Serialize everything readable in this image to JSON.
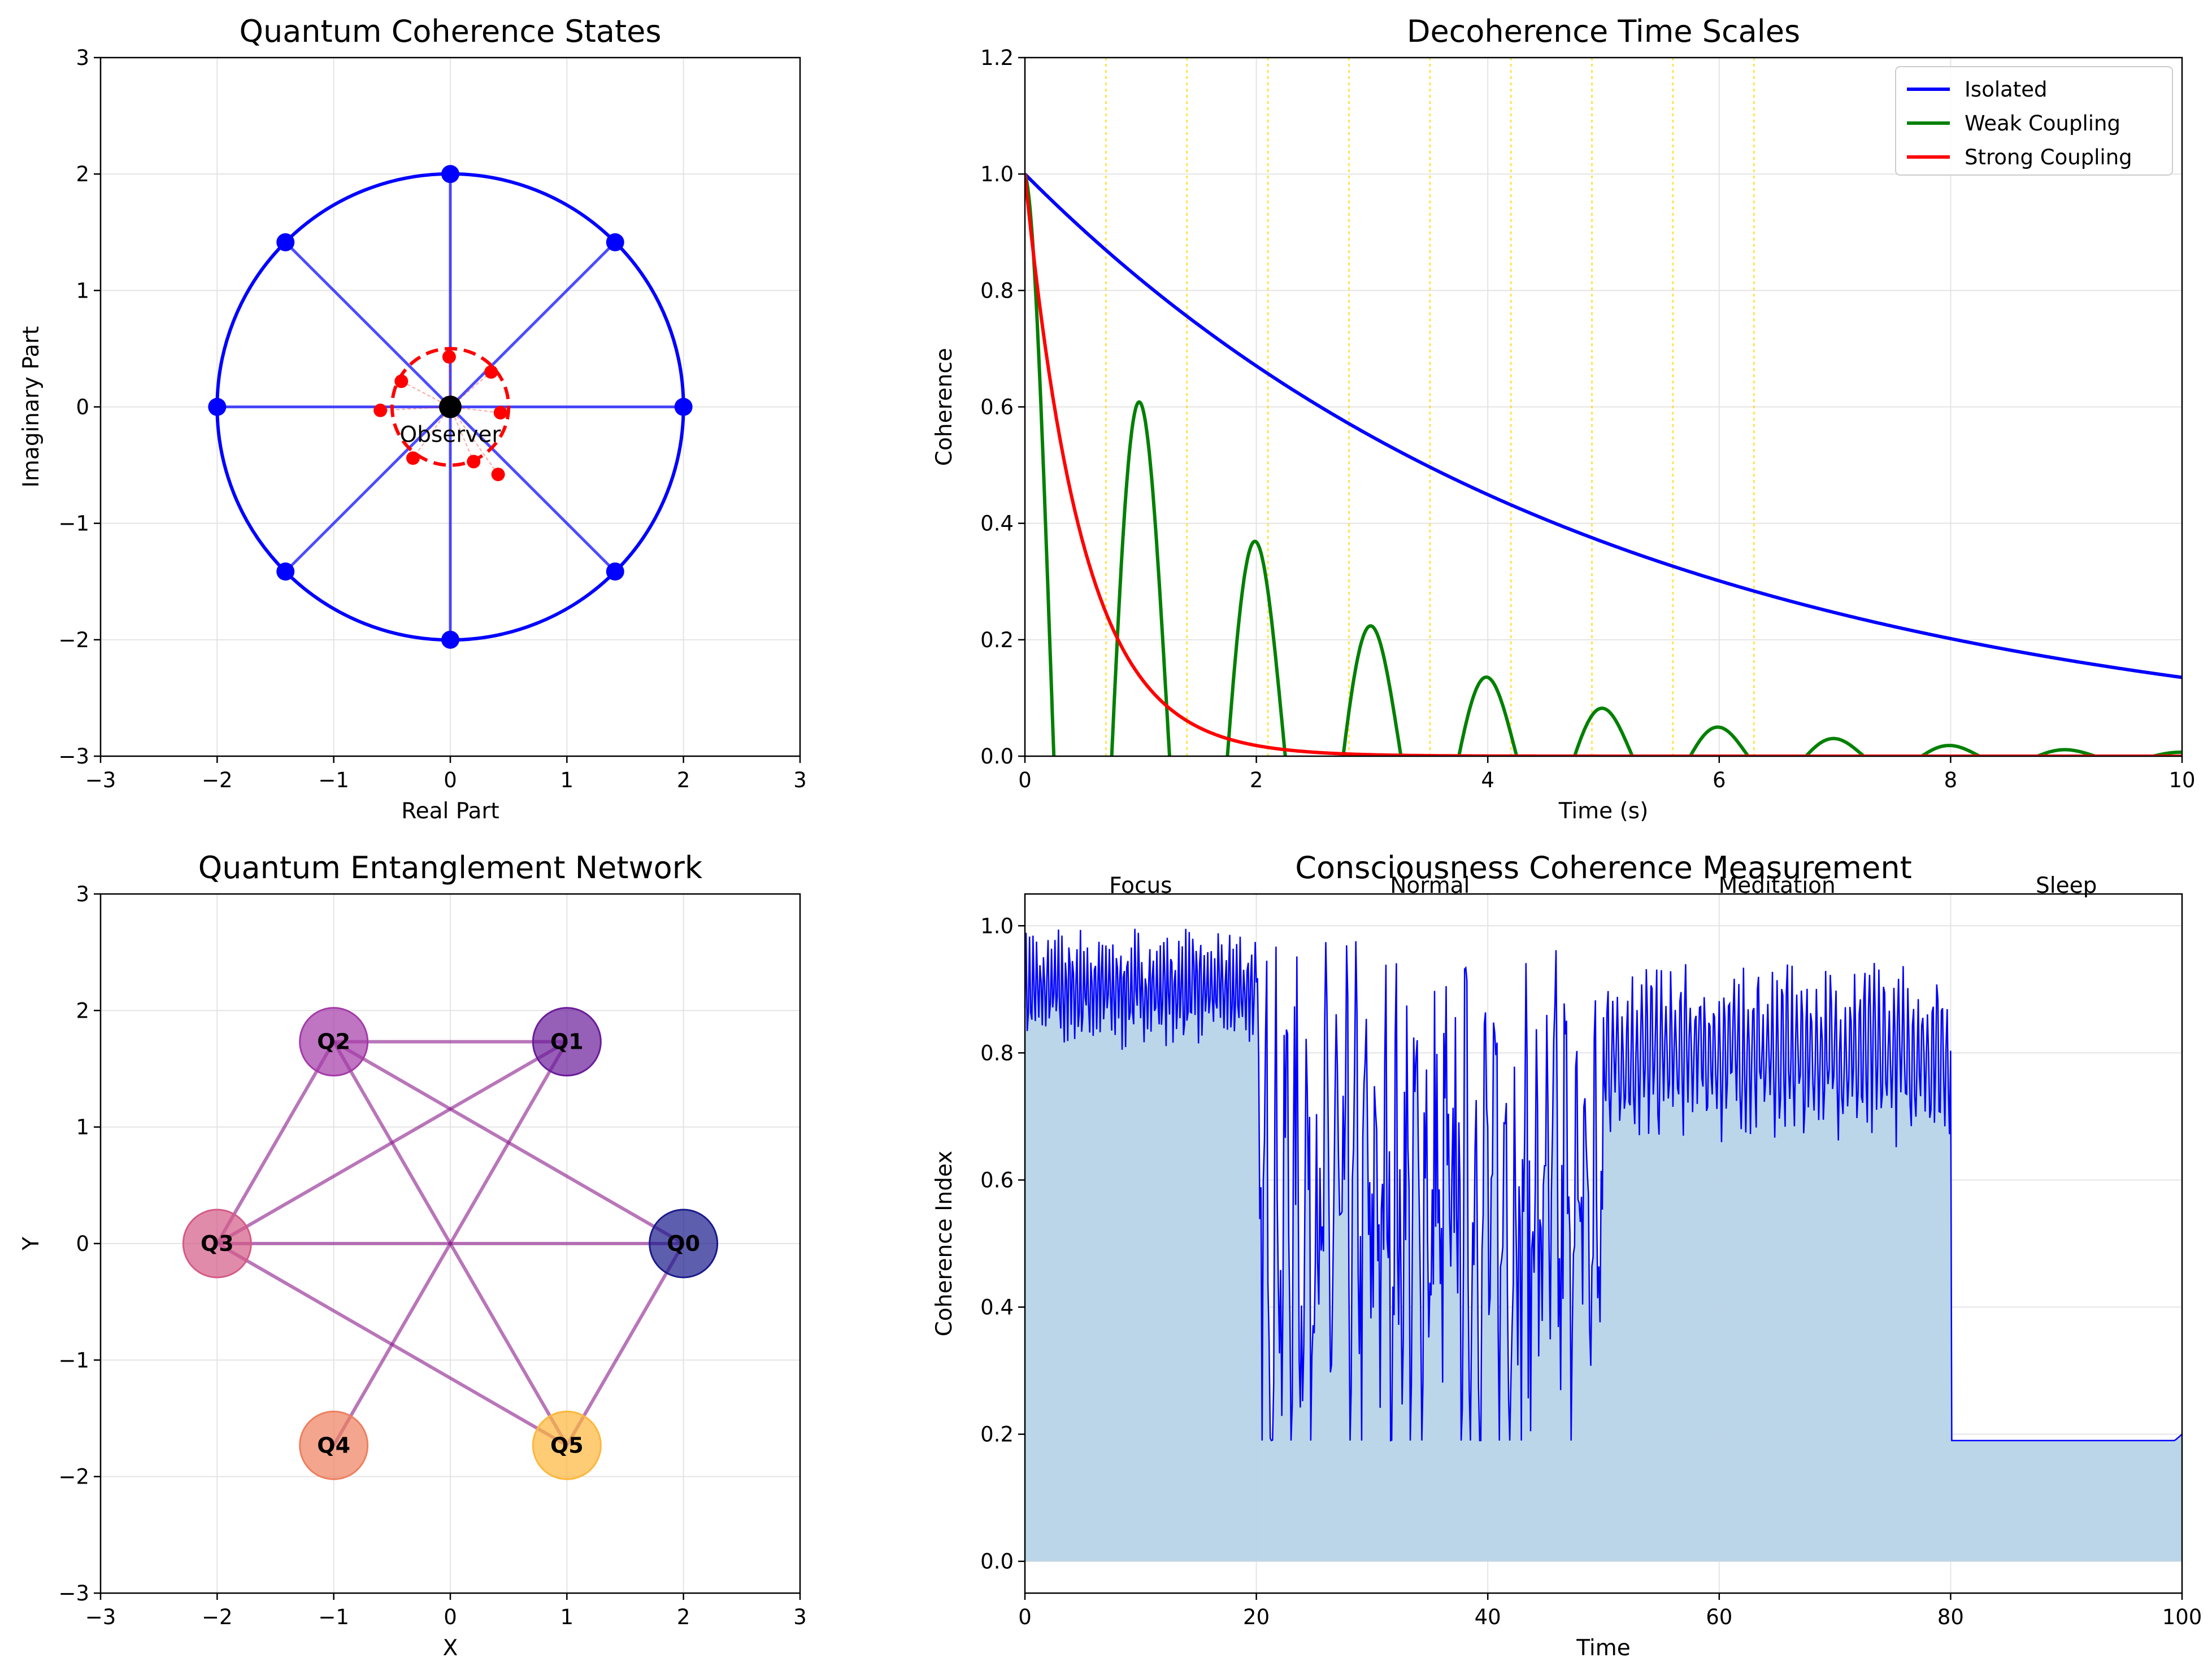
{
  "charts": {
    "coherence_states": {
      "title": "Quantum Coherence States",
      "xlabel": "Real Part",
      "ylabel": "Imaginary Part",
      "xlim": [
        -3,
        3
      ],
      "ylim": [
        -3,
        3
      ],
      "xticks": [
        -3,
        -2,
        -1,
        0,
        1,
        2,
        3
      ],
      "yticks": [
        -3,
        -2,
        -1,
        0,
        1,
        2,
        3
      ],
      "observer_label": "Observer"
    },
    "decoherence": {
      "title": "Decoherence Time Scales",
      "xlabel": "Time (s)",
      "ylabel": "Coherence",
      "xlim": [
        0,
        10
      ],
      "ylim": [
        0,
        1.2
      ],
      "xticks": [
        0,
        2,
        4,
        6,
        8,
        10
      ],
      "yticks": [
        0.0,
        0.2,
        0.4,
        0.6,
        0.8,
        1.0,
        1.2
      ],
      "legend": [
        "Isolated",
        "Weak Coupling",
        "Strong Coupling"
      ]
    },
    "entanglement": {
      "title": "Quantum Entanglement Network",
      "xlabel": "X",
      "ylabel": "Y",
      "xlim": [
        -3,
        3
      ],
      "ylim": [
        -3,
        3
      ],
      "xticks": [
        -3,
        -2,
        -1,
        0,
        1,
        2,
        3
      ],
      "yticks": [
        -3,
        -2,
        -1,
        0,
        1,
        2,
        3
      ],
      "node_labels": [
        "Q0",
        "Q1",
        "Q2",
        "Q3",
        "Q4",
        "Q5"
      ]
    },
    "consciousness": {
      "title": "Consciousness Coherence Measurement",
      "xlabel": "Time",
      "ylabel": "Coherence Index",
      "xlim": [
        0,
        100
      ],
      "ylim": [
        -0.05,
        1.05
      ],
      "xticks": [
        0,
        20,
        40,
        60,
        80,
        100
      ],
      "yticks": [
        0.0,
        0.2,
        0.4,
        0.6,
        0.8,
        1.0
      ],
      "phases": [
        "Focus",
        "Normal",
        "Meditation",
        "Sleep"
      ]
    }
  },
  "chart_data": [
    {
      "type": "scatter",
      "title": "Quantum Coherence States",
      "xlabel": "Real Part",
      "ylabel": "Imaginary Part",
      "xlim": [
        -3,
        3
      ],
      "ylim": [
        -3,
        3
      ],
      "grid": true,
      "circle_radius": 2,
      "outer_points": [
        [
          2,
          0
        ],
        [
          1.414,
          1.414
        ],
        [
          0,
          2
        ],
        [
          -1.414,
          1.414
        ],
        [
          -2,
          0
        ],
        [
          -1.414,
          -1.414
        ],
        [
          0,
          -2
        ],
        [
          1.414,
          -1.414
        ]
      ],
      "center_point": [
        0,
        0
      ],
      "inner_circle_radius": 0.5,
      "inner_points": [
        [
          0.35,
          0.3
        ],
        [
          -0.01,
          0.43
        ],
        [
          -0.42,
          0.22
        ],
        [
          -0.6,
          -0.03
        ],
        [
          0.43,
          -0.05
        ],
        [
          -0.32,
          -0.44
        ],
        [
          0.2,
          -0.47
        ],
        [
          0.41,
          -0.58
        ]
      ],
      "colors": {
        "outer": "#0000ff",
        "inner": "#ff0000",
        "center": "#000000"
      }
    },
    {
      "type": "line",
      "title": "Decoherence Time Scales",
      "xlabel": "Time (s)",
      "ylabel": "Coherence",
      "xlim": [
        0,
        10
      ],
      "ylim": [
        0,
        1.2
      ],
      "grid": true,
      "legend_position": "top-right",
      "series": [
        {
          "name": "Isolated",
          "color": "#0000ff",
          "x": [
            0,
            1,
            2,
            3,
            4,
            5,
            6,
            7,
            8,
            9,
            10
          ],
          "y": [
            1.0,
            0.819,
            0.67,
            0.549,
            0.449,
            0.368,
            0.301,
            0.247,
            0.202,
            0.165,
            0.135
          ]
        },
        {
          "name": "Weak Coupling",
          "color": "#008000",
          "x": [
            0,
            0.25,
            0.75,
            1.0,
            1.25,
            1.75,
            2.0,
            2.25,
            2.75,
            3.0,
            3.25,
            3.75,
            4.0,
            4.25,
            4.75,
            5.0,
            5.25,
            5.75,
            6.0,
            6.25,
            6.75,
            7.0,
            7.25,
            7.75,
            8.0,
            8.25,
            8.75,
            9.0,
            9.25,
            9.75,
            10.0
          ],
          "y": [
            1.0,
            0,
            0,
            0.607,
            0,
            0,
            0.368,
            0,
            0,
            0.223,
            0,
            0,
            0.135,
            0,
            0,
            0.082,
            0,
            0,
            0.05,
            0,
            0,
            0.03,
            0,
            0,
            0.018,
            0,
            0,
            0.011,
            0,
            0,
            0.007
          ]
        },
        {
          "name": "Strong Coupling",
          "color": "#ff0000",
          "x": [
            0,
            0.5,
            1,
            1.5,
            2,
            2.5,
            3,
            4,
            5,
            10
          ],
          "y": [
            1.0,
            0.368,
            0.135,
            0.05,
            0.018,
            0.007,
            0.002,
            0.0,
            0.0,
            0.0
          ]
        }
      ],
      "vertical_lines_x": [
        0.7,
        1.4,
        2.1,
        2.8,
        3.5,
        4.2,
        4.9,
        5.6,
        6.3
      ]
    },
    {
      "type": "scatter",
      "title": "Quantum Entanglement Network",
      "xlabel": "X",
      "ylabel": "Y",
      "xlim": [
        -3,
        3
      ],
      "ylim": [
        -3,
        3
      ],
      "grid": true,
      "nodes": [
        {
          "label": "Q0",
          "x": 2,
          "y": 0,
          "color": "#1a1a8c"
        },
        {
          "label": "Q1",
          "x": 1,
          "y": 1.732,
          "color": "#6a1b9a"
        },
        {
          "label": "Q2",
          "x": -1,
          "y": 1.732,
          "color": "#a43aa8"
        },
        {
          "label": "Q3",
          "x": -2,
          "y": 0,
          "color": "#d45a86"
        },
        {
          "label": "Q4",
          "x": -1,
          "y": -1.732,
          "color": "#ee7f5e"
        },
        {
          "label": "Q5",
          "x": 1,
          "y": -1.732,
          "color": "#fdb73b"
        }
      ],
      "edges": [
        [
          2,
          1
        ],
        [
          2,
          3
        ],
        [
          2,
          0
        ],
        [
          2,
          5
        ],
        [
          1,
          3
        ],
        [
          1,
          4
        ],
        [
          3,
          0
        ],
        [
          3,
          5
        ],
        [
          0,
          5
        ]
      ]
    },
    {
      "type": "area",
      "title": "Consciousness Coherence Measurement",
      "xlabel": "Time",
      "ylabel": "Coherence Index",
      "xlim": [
        0,
        100
      ],
      "ylim": [
        -0.05,
        1.05
      ],
      "grid": true,
      "phases": [
        {
          "name": "Focus",
          "x_range": [
            0,
            20
          ],
          "approx_range": [
            0.8,
            1.0
          ]
        },
        {
          "name": "Normal",
          "x_range": [
            20,
            50
          ],
          "approx_range": [
            0.19,
            0.97
          ]
        },
        {
          "name": "Meditation",
          "x_range": [
            50,
            80
          ],
          "approx_range": [
            0.66,
            0.95
          ]
        },
        {
          "name": "Sleep",
          "x_range": [
            80,
            100
          ],
          "approx_range": [
            0.1,
            0.2
          ]
        }
      ],
      "sleep_curve": {
        "x": [
          80,
          84,
          87.5,
          92,
          96,
          100
        ],
        "y": [
          0.14,
          0.11,
          0.1,
          0.11,
          0.15,
          0.2
        ]
      },
      "colors": {
        "line": "#0000ff",
        "fill": "#b8d4e8"
      }
    }
  ]
}
